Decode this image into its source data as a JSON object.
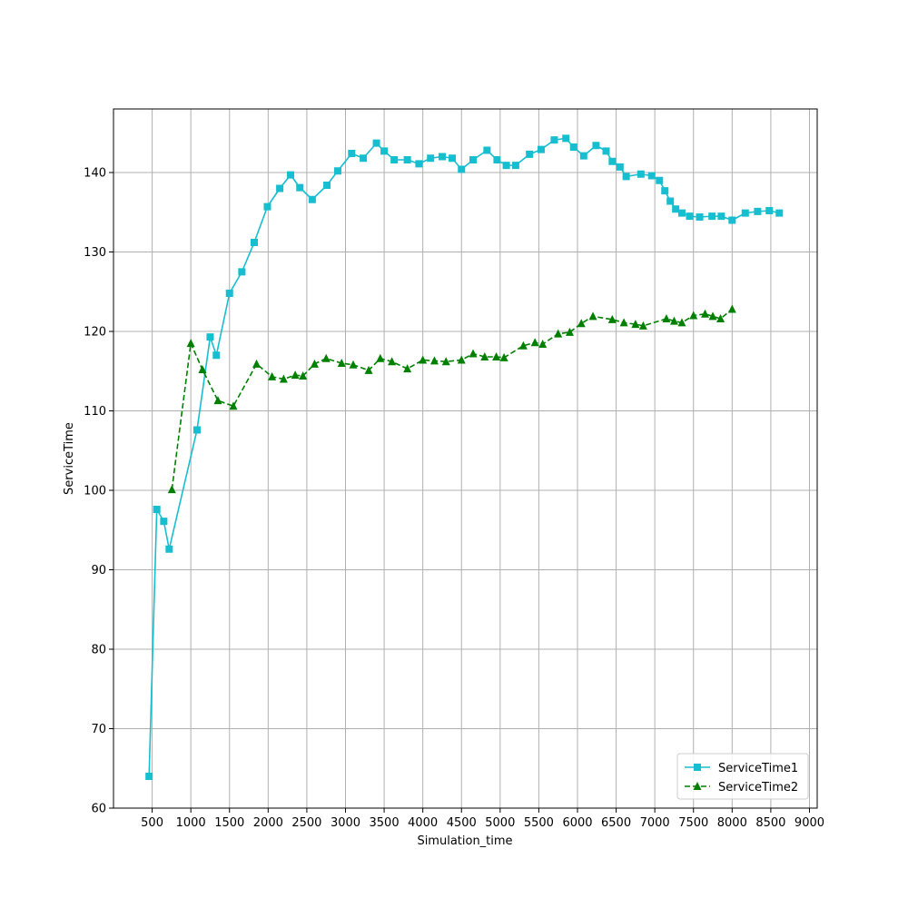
{
  "chart_data": {
    "type": "line",
    "title": "",
    "xlabel": "Simulation_time",
    "ylabel": "ServiceTime",
    "xlim": [
      0,
      9100
    ],
    "ylim": [
      60,
      148
    ],
    "xticks": [
      500,
      1000,
      1500,
      2000,
      2500,
      3000,
      3500,
      4000,
      4500,
      5000,
      5500,
      6000,
      6500,
      7000,
      7500,
      8000,
      8500,
      9000
    ],
    "yticks": [
      60,
      70,
      80,
      90,
      100,
      110,
      120,
      130,
      140
    ],
    "grid": true,
    "legend_position": "bottom-right",
    "series": [
      {
        "name": "ServiceTime1",
        "color": "#17becf",
        "line_style": "solid",
        "marker": "square",
        "x": [
          460,
          560,
          650,
          720,
          1080,
          1250,
          1330,
          1500,
          1660,
          1820,
          1990,
          2150,
          2290,
          2410,
          2570,
          2760,
          2900,
          3080,
          3230,
          3400,
          3500,
          3630,
          3800,
          3950,
          4100,
          4250,
          4380,
          4500,
          4650,
          4830,
          4960,
          5080,
          5200,
          5380,
          5530,
          5700,
          5850,
          5950,
          6080,
          6240,
          6370,
          6450,
          6550,
          6630,
          6820,
          6960,
          7060,
          7130,
          7200,
          7270,
          7350,
          7450,
          7580,
          7740,
          7860,
          8000,
          8170,
          8330,
          8480,
          8610
        ],
        "y": [
          64.0,
          97.6,
          96.1,
          92.6,
          107.6,
          119.3,
          117.0,
          124.8,
          127.5,
          131.2,
          135.7,
          138.0,
          139.7,
          138.1,
          136.6,
          138.4,
          140.2,
          142.4,
          141.8,
          143.7,
          142.7,
          141.6,
          141.6,
          141.1,
          141.8,
          142.0,
          141.8,
          140.4,
          141.6,
          142.8,
          141.6,
          140.9,
          140.9,
          142.3,
          142.9,
          144.1,
          144.3,
          143.2,
          142.1,
          143.4,
          142.7,
          141.4,
          140.7,
          139.5,
          139.8,
          139.6,
          139.0,
          137.7,
          136.4,
          135.4,
          134.9,
          134.5,
          134.4,
          134.5,
          134.5,
          134.0,
          134.9,
          135.1,
          135.2,
          134.9
        ]
      },
      {
        "name": "ServiceTime2",
        "color": "#008000",
        "line_style": "dashed",
        "marker": "triangle",
        "x": [
          755,
          1000,
          1150,
          1350,
          1550,
          1850,
          2050,
          2200,
          2350,
          2450,
          2600,
          2750,
          2950,
          3100,
          3300,
          3450,
          3600,
          3800,
          4000,
          4150,
          4300,
          4500,
          4650,
          4800,
          4950,
          5050,
          5300,
          5450,
          5550,
          5750,
          5900,
          6050,
          6200,
          6450,
          6600,
          6750,
          6850,
          7150,
          7250,
          7350,
          7500,
          7650,
          7750,
          7850,
          8000
        ],
        "y": [
          100.1,
          118.5,
          115.2,
          111.3,
          110.6,
          115.9,
          114.3,
          114.0,
          114.5,
          114.4,
          115.9,
          116.6,
          116.0,
          115.8,
          115.1,
          116.6,
          116.2,
          115.3,
          116.4,
          116.3,
          116.2,
          116.4,
          117.2,
          116.8,
          116.8,
          116.7,
          118.2,
          118.6,
          118.4,
          119.7,
          119.9,
          121.0,
          121.9,
          121.5,
          121.1,
          120.9,
          120.7,
          121.6,
          121.3,
          121.1,
          122.0,
          122.2,
          121.9,
          121.6,
          122.8
        ]
      }
    ]
  }
}
